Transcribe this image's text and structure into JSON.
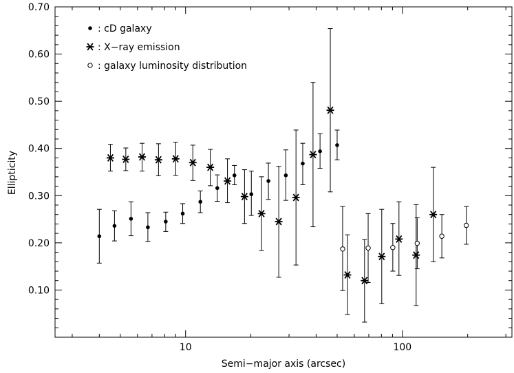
{
  "chart_data": {
    "type": "scatter",
    "xlabel": "Semi−major axis (arcsec)",
    "ylabel": "Ellipticity",
    "xscale": "log",
    "xlim": [
      2.5,
      320
    ],
    "ylim": [
      0.0,
      0.7
    ],
    "x_tick_labels": [
      {
        "value": 10,
        "label": "10"
      },
      {
        "value": 100,
        "label": "100"
      }
    ],
    "y_tick_labels": [
      {
        "value": 0.1,
        "label": "0.10"
      },
      {
        "value": 0.2,
        "label": "0.20"
      },
      {
        "value": 0.3,
        "label": "0.30"
      },
      {
        "value": 0.4,
        "label": "0.40"
      },
      {
        "value": 0.5,
        "label": "0.50"
      },
      {
        "value": 0.6,
        "label": "0.60"
      },
      {
        "value": 0.7,
        "label": "0.70"
      }
    ],
    "grid": false,
    "legend_position": "top-left",
    "legend": [
      {
        "series": "cd",
        "marker": "filled-circle",
        "symbol": "•",
        "label": ": cD galaxy"
      },
      {
        "series": "xray",
        "marker": "asterisk",
        "symbol": "∗",
        "label": ": X−ray emission"
      },
      {
        "series": "gal",
        "marker": "open-circle",
        "symbol": "o",
        "label": ": galaxy luminosity distribution"
      }
    ],
    "series": [
      {
        "id": "cd",
        "marker": "filled-circle",
        "points": [
          {
            "x": 4.0,
            "y": 0.214,
            "ylo": 0.157,
            "yhi": 0.271
          },
          {
            "x": 4.7,
            "y": 0.236,
            "ylo": 0.204,
            "yhi": 0.268
          },
          {
            "x": 5.6,
            "y": 0.251,
            "ylo": 0.215,
            "yhi": 0.287
          },
          {
            "x": 6.7,
            "y": 0.233,
            "ylo": 0.203,
            "yhi": 0.264
          },
          {
            "x": 8.1,
            "y": 0.245,
            "ylo": 0.224,
            "yhi": 0.265
          },
          {
            "x": 9.7,
            "y": 0.262,
            "ylo": 0.241,
            "yhi": 0.283
          },
          {
            "x": 11.7,
            "y": 0.287,
            "ylo": 0.264,
            "yhi": 0.31
          },
          {
            "x": 14.0,
            "y": 0.316,
            "ylo": 0.288,
            "yhi": 0.344
          },
          {
            "x": 16.8,
            "y": 0.343,
            "ylo": 0.323,
            "yhi": 0.364
          },
          {
            "x": 20.1,
            "y": 0.303,
            "ylo": 0.258,
            "yhi": 0.352
          },
          {
            "x": 24.1,
            "y": 0.331,
            "ylo": 0.292,
            "yhi": 0.369
          },
          {
            "x": 29.0,
            "y": 0.343,
            "ylo": 0.29,
            "yhi": 0.397
          },
          {
            "x": 34.7,
            "y": 0.368,
            "ylo": 0.323,
            "yhi": 0.411
          },
          {
            "x": 41.7,
            "y": 0.394,
            "ylo": 0.358,
            "yhi": 0.431
          },
          {
            "x": 50.0,
            "y": 0.407,
            "ylo": 0.376,
            "yhi": 0.439
          }
        ]
      },
      {
        "id": "xray",
        "marker": "asterisk",
        "points": [
          {
            "x": 4.5,
            "y": 0.38,
            "ylo": 0.352,
            "yhi": 0.409
          },
          {
            "x": 5.3,
            "y": 0.377,
            "ylo": 0.353,
            "yhi": 0.401
          },
          {
            "x": 6.3,
            "y": 0.382,
            "ylo": 0.352,
            "yhi": 0.411
          },
          {
            "x": 7.5,
            "y": 0.376,
            "ylo": 0.342,
            "yhi": 0.41
          },
          {
            "x": 9.0,
            "y": 0.378,
            "ylo": 0.343,
            "yhi": 0.413
          },
          {
            "x": 10.8,
            "y": 0.37,
            "ylo": 0.332,
            "yhi": 0.407
          },
          {
            "x": 13.0,
            "y": 0.36,
            "ylo": 0.321,
            "yhi": 0.398
          },
          {
            "x": 15.6,
            "y": 0.331,
            "ylo": 0.285,
            "yhi": 0.378
          },
          {
            "x": 18.7,
            "y": 0.298,
            "ylo": 0.241,
            "yhi": 0.355
          },
          {
            "x": 22.4,
            "y": 0.262,
            "ylo": 0.184,
            "yhi": 0.34
          },
          {
            "x": 26.9,
            "y": 0.245,
            "ylo": 0.127,
            "yhi": 0.362
          },
          {
            "x": 32.3,
            "y": 0.296,
            "ylo": 0.153,
            "yhi": 0.439
          },
          {
            "x": 38.7,
            "y": 0.387,
            "ylo": 0.234,
            "yhi": 0.54
          },
          {
            "x": 46.5,
            "y": 0.481,
            "ylo": 0.308,
            "yhi": 0.654
          },
          {
            "x": 55.8,
            "y": 0.132,
            "ylo": 0.048,
            "yhi": 0.217
          },
          {
            "x": 66.9,
            "y": 0.12,
            "ylo": 0.032,
            "yhi": 0.207
          },
          {
            "x": 80.3,
            "y": 0.171,
            "ylo": 0.071,
            "yhi": 0.271
          },
          {
            "x": 96.4,
            "y": 0.208,
            "ylo": 0.131,
            "yhi": 0.287
          },
          {
            "x": 115.7,
            "y": 0.174,
            "ylo": 0.067,
            "yhi": 0.281
          },
          {
            "x": 138.8,
            "y": 0.26,
            "ylo": 0.16,
            "yhi": 0.36
          }
        ]
      },
      {
        "id": "gal",
        "marker": "open-circle",
        "points": [
          {
            "x": 53.0,
            "y": 0.187,
            "ylo": 0.099,
            "yhi": 0.277
          },
          {
            "x": 69.5,
            "y": 0.189,
            "ylo": 0.116,
            "yhi": 0.262
          },
          {
            "x": 90.3,
            "y": 0.19,
            "ylo": 0.14,
            "yhi": 0.241
          },
          {
            "x": 117.0,
            "y": 0.199,
            "ylo": 0.145,
            "yhi": 0.253
          },
          {
            "x": 152.0,
            "y": 0.214,
            "ylo": 0.168,
            "yhi": 0.26
          },
          {
            "x": 197.0,
            "y": 0.237,
            "ylo": 0.197,
            "yhi": 0.277
          }
        ]
      }
    ]
  }
}
